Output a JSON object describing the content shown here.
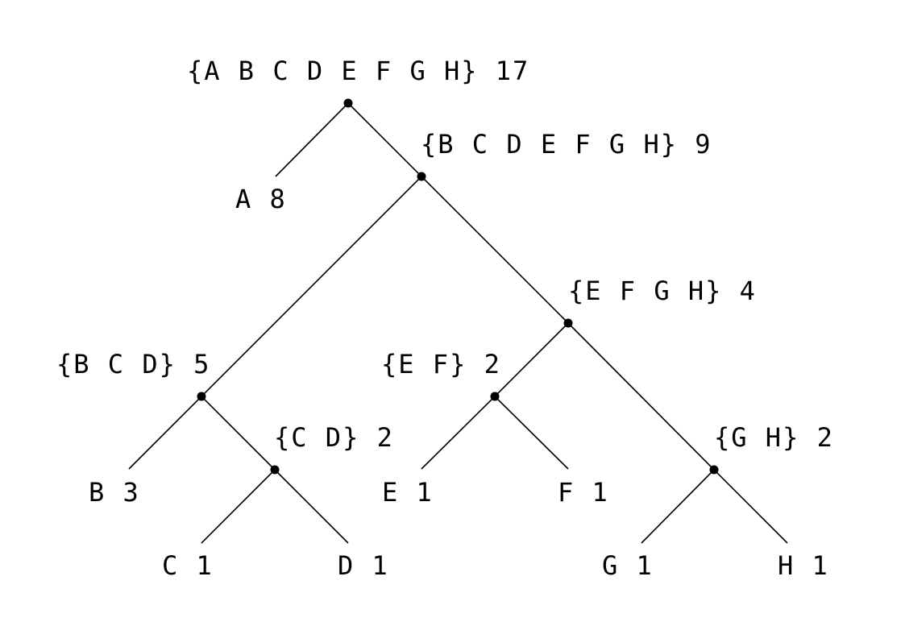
{
  "tree": {
    "root": {
      "label": "{A B C D E F G H} 17"
    },
    "n_bcdefgh": {
      "label": "{B C D E F G H} 9"
    },
    "n_efgh": {
      "label": "{E F G H} 4"
    },
    "n_bcd": {
      "label": "{B C D} 5"
    },
    "n_ef": {
      "label": "{E F} 2"
    },
    "n_cd": {
      "label": "{C D} 2"
    },
    "n_gh": {
      "label": "{G H} 2"
    },
    "leaf_a": {
      "label": "A 8"
    },
    "leaf_b": {
      "label": "B 3"
    },
    "leaf_c": {
      "label": "C 1"
    },
    "leaf_d": {
      "label": "D 1"
    },
    "leaf_e": {
      "label": "E 1"
    },
    "leaf_f": {
      "label": "F 1"
    },
    "leaf_g": {
      "label": "G 1"
    },
    "leaf_h": {
      "label": "H 1"
    }
  },
  "colors": {
    "line": "#000000",
    "background": "#ffffff"
  }
}
